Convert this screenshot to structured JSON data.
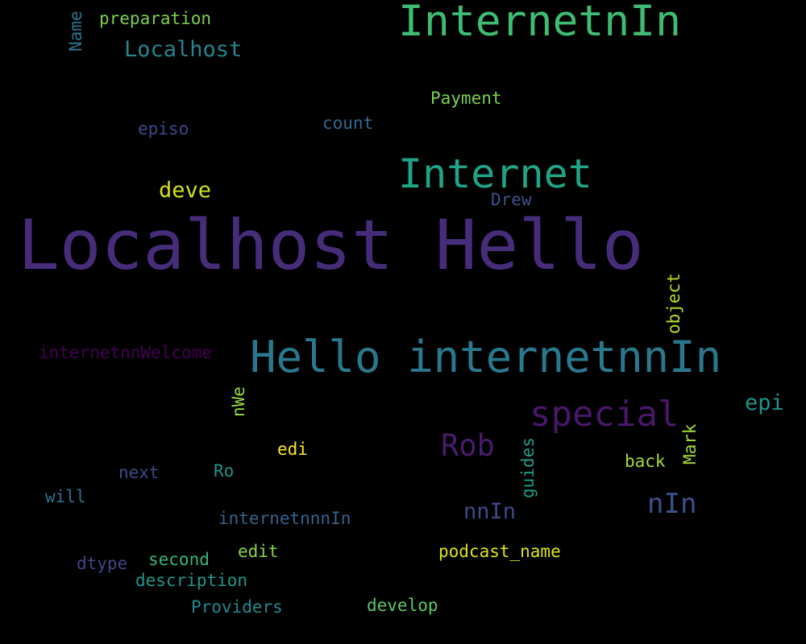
{
  "words": [
    {
      "id": "localhost-hello",
      "text": "Localhost Hello",
      "color": "#472c7a",
      "orientation": "horizontal"
    },
    {
      "id": "internetnin",
      "text": "InternetnIn",
      "color": "#3fbc73",
      "orientation": "horizontal"
    },
    {
      "id": "hello-internetnnin",
      "text": "Hello internetnnIn",
      "color": "#2a788e",
      "orientation": "horizontal"
    },
    {
      "id": "internet",
      "text": "Internet",
      "color": "#20a386",
      "orientation": "horizontal"
    },
    {
      "id": "special",
      "text": "special",
      "color": "#481769",
      "orientation": "horizontal"
    },
    {
      "id": "rob",
      "text": "Rob",
      "color": "#481b6d",
      "orientation": "horizontal"
    },
    {
      "id": "localhost",
      "text": "Localhost",
      "color": "#25858e",
      "orientation": "horizontal"
    },
    {
      "id": "nin",
      "text": "nIn",
      "color": "#3b518b",
      "orientation": "horizontal"
    },
    {
      "id": "nnin",
      "text": "nnIn",
      "color": "#3e4989",
      "orientation": "horizontal"
    },
    {
      "id": "deve",
      "text": "deve",
      "color": "#d2e21b",
      "orientation": "horizontal"
    },
    {
      "id": "epi",
      "text": "epi",
      "color": "#1f948c",
      "orientation": "horizontal"
    },
    {
      "id": "preparation",
      "text": "preparation",
      "color": "#7ad151",
      "orientation": "horizontal"
    },
    {
      "id": "payment",
      "text": "Payment",
      "color": "#7ad151",
      "orientation": "horizontal"
    },
    {
      "id": "episo",
      "text": "episo",
      "color": "#3f4788",
      "orientation": "horizontal"
    },
    {
      "id": "count",
      "text": "count",
      "color": "#31688e",
      "orientation": "horizontal"
    },
    {
      "id": "drew",
      "text": "Drew",
      "color": "#3b528b",
      "orientation": "horizontal"
    },
    {
      "id": "internetnnwelcome",
      "text": "internetnnWelcome",
      "color": "#440154",
      "orientation": "horizontal"
    },
    {
      "id": "edi",
      "text": "edi",
      "color": "#fde725",
      "orientation": "horizontal"
    },
    {
      "id": "back",
      "text": "back",
      "color": "#a5db36",
      "orientation": "horizontal"
    },
    {
      "id": "next",
      "text": "next",
      "color": "#3e4a89",
      "orientation": "horizontal"
    },
    {
      "id": "ro",
      "text": "Ro",
      "color": "#21918c",
      "orientation": "horizontal"
    },
    {
      "id": "will",
      "text": "will",
      "color": "#2d708e",
      "orientation": "horizontal"
    },
    {
      "id": "internetnnnin",
      "text": "internetnnnIn",
      "color": "#33638d",
      "orientation": "horizontal"
    },
    {
      "id": "podcast-name",
      "text": "podcast_name",
      "color": "#dde318",
      "orientation": "horizontal"
    },
    {
      "id": "edit",
      "text": "edit",
      "color": "#86d549",
      "orientation": "horizontal"
    },
    {
      "id": "second",
      "text": "second",
      "color": "#35b779",
      "orientation": "horizontal"
    },
    {
      "id": "dtype",
      "text": "dtype",
      "color": "#414487",
      "orientation": "horizontal"
    },
    {
      "id": "description",
      "text": "description",
      "color": "#1f988b",
      "orientation": "horizontal"
    },
    {
      "id": "providers",
      "text": "Providers",
      "color": "#23888e",
      "orientation": "horizontal"
    },
    {
      "id": "develop",
      "text": "develop",
      "color": "#5ec962",
      "orientation": "horizontal"
    },
    {
      "id": "name",
      "text": "Name",
      "color": "#2c728e",
      "orientation": "vertical"
    },
    {
      "id": "object",
      "text": "object",
      "color": "#b5de2b",
      "orientation": "vertical"
    },
    {
      "id": "nwe",
      "text": "nWe",
      "color": "#95d840",
      "orientation": "vertical"
    },
    {
      "id": "guides",
      "text": "guides",
      "color": "#1f9e89",
      "orientation": "vertical"
    },
    {
      "id": "mark",
      "text": "Mark",
      "color": "#a2da37",
      "orientation": "vertical"
    }
  ]
}
